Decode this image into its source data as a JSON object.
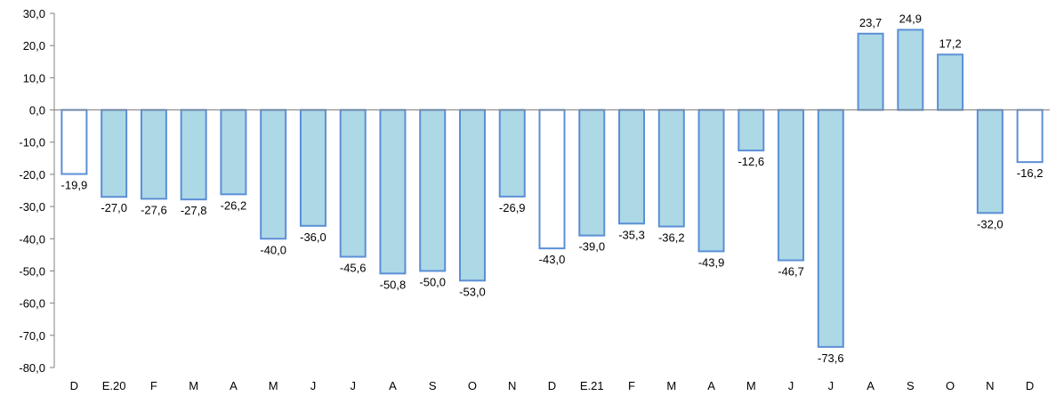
{
  "chart_data": {
    "type": "bar",
    "title": "",
    "xlabel": "",
    "ylabel": "",
    "ylim": [
      -80,
      30
    ],
    "yticks": [
      30,
      20,
      10,
      0,
      -10,
      -20,
      -30,
      -40,
      -50,
      -60,
      -70,
      -80
    ],
    "ytick_labels": [
      "30,0",
      "20,0",
      "10,0",
      "0,0",
      "-10,0",
      "-20,0",
      "-30,0",
      "-40,0",
      "-50,0",
      "-60,0",
      "-70,0",
      "-80,0"
    ],
    "categories": [
      "D",
      "E.20",
      "F",
      "M",
      "A",
      "M",
      "J",
      "J",
      "A",
      "S",
      "O",
      "N",
      "D",
      "E.21",
      "F",
      "M",
      "A",
      "M",
      "J",
      "J",
      "A",
      "S",
      "O",
      "N",
      "D"
    ],
    "values": [
      -19.9,
      -27.0,
      -27.6,
      -27.8,
      -26.2,
      -40.0,
      -36.0,
      -45.6,
      -50.8,
      -50.0,
      -53.0,
      -26.9,
      -43.0,
      -39.0,
      -35.3,
      -36.2,
      -43.9,
      -12.6,
      -46.7,
      -73.6,
      23.7,
      24.9,
      17.2,
      -32.0,
      -16.2
    ],
    "value_labels": [
      "-19,9",
      "-27,0",
      "-27,6",
      "-27,8",
      "-26,2",
      "-40,0",
      "-36,0",
      "-45,6",
      "-50,8",
      "-50,0",
      "-53,0",
      "-26,9",
      "-43,0",
      "-39,0",
      "-35,3",
      "-36,2",
      "-43,9",
      "-12,6",
      "-46,7",
      "-73,6",
      "23,7",
      "24,9",
      "17,2",
      "-32,0",
      "-16,2"
    ],
    "filled": [
      false,
      true,
      true,
      true,
      true,
      true,
      true,
      true,
      true,
      true,
      true,
      true,
      false,
      true,
      true,
      true,
      true,
      true,
      true,
      true,
      true,
      true,
      true,
      true,
      false
    ],
    "colors": {
      "fill": "#add8e6",
      "stroke": "#5b8fd6",
      "axis": "#808080"
    },
    "grid": false,
    "legend": "none"
  }
}
